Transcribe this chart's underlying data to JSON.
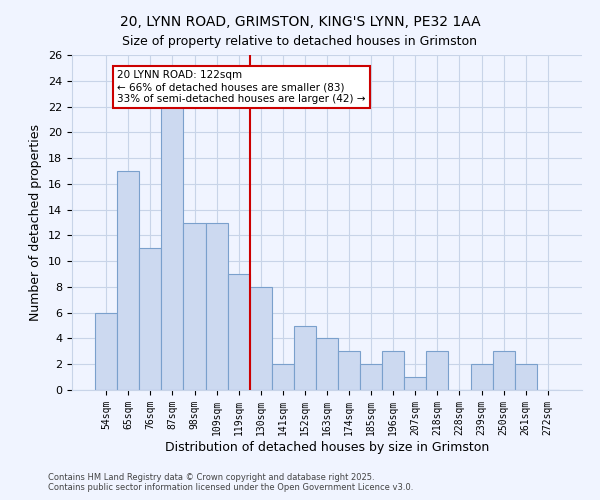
{
  "title1": "20, LYNN ROAD, GRIMSTON, KING'S LYNN, PE32 1AA",
  "title2": "Size of property relative to detached houses in Grimston",
  "xlabel": "Distribution of detached houses by size in Grimston",
  "ylabel": "Number of detached properties",
  "categories": [
    "54sqm",
    "65sqm",
    "76sqm",
    "87sqm",
    "98sqm",
    "109sqm",
    "119sqm",
    "130sqm",
    "141sqm",
    "152sqm",
    "163sqm",
    "174sqm",
    "185sqm",
    "196sqm",
    "207sqm",
    "218sqm",
    "228sqm",
    "239sqm",
    "250sqm",
    "261sqm",
    "272sqm"
  ],
  "values": [
    6,
    17,
    11,
    22,
    13,
    13,
    9,
    8,
    2,
    5,
    4,
    3,
    2,
    3,
    1,
    3,
    0,
    2,
    3,
    2,
    0
  ],
  "bar_color": "#ccd9f0",
  "bar_edge_color": "#7aa0cc",
  "vline_color": "#cc0000",
  "ylim": [
    0,
    26
  ],
  "yticks": [
    0,
    2,
    4,
    6,
    8,
    10,
    12,
    14,
    16,
    18,
    20,
    22,
    24,
    26
  ],
  "annotation_title": "20 LYNN ROAD: 122sqm",
  "annotation_line1": "← 66% of detached houses are smaller (83)",
  "annotation_line2": "33% of semi-detached houses are larger (42) →",
  "annotation_box_color": "#ffffff",
  "annotation_box_edge": "#cc0000",
  "footer1": "Contains HM Land Registry data © Crown copyright and database right 2025.",
  "footer2": "Contains public sector information licensed under the Open Government Licence v3.0.",
  "bg_color": "#f0f4ff",
  "grid_color": "#c8d4e8"
}
